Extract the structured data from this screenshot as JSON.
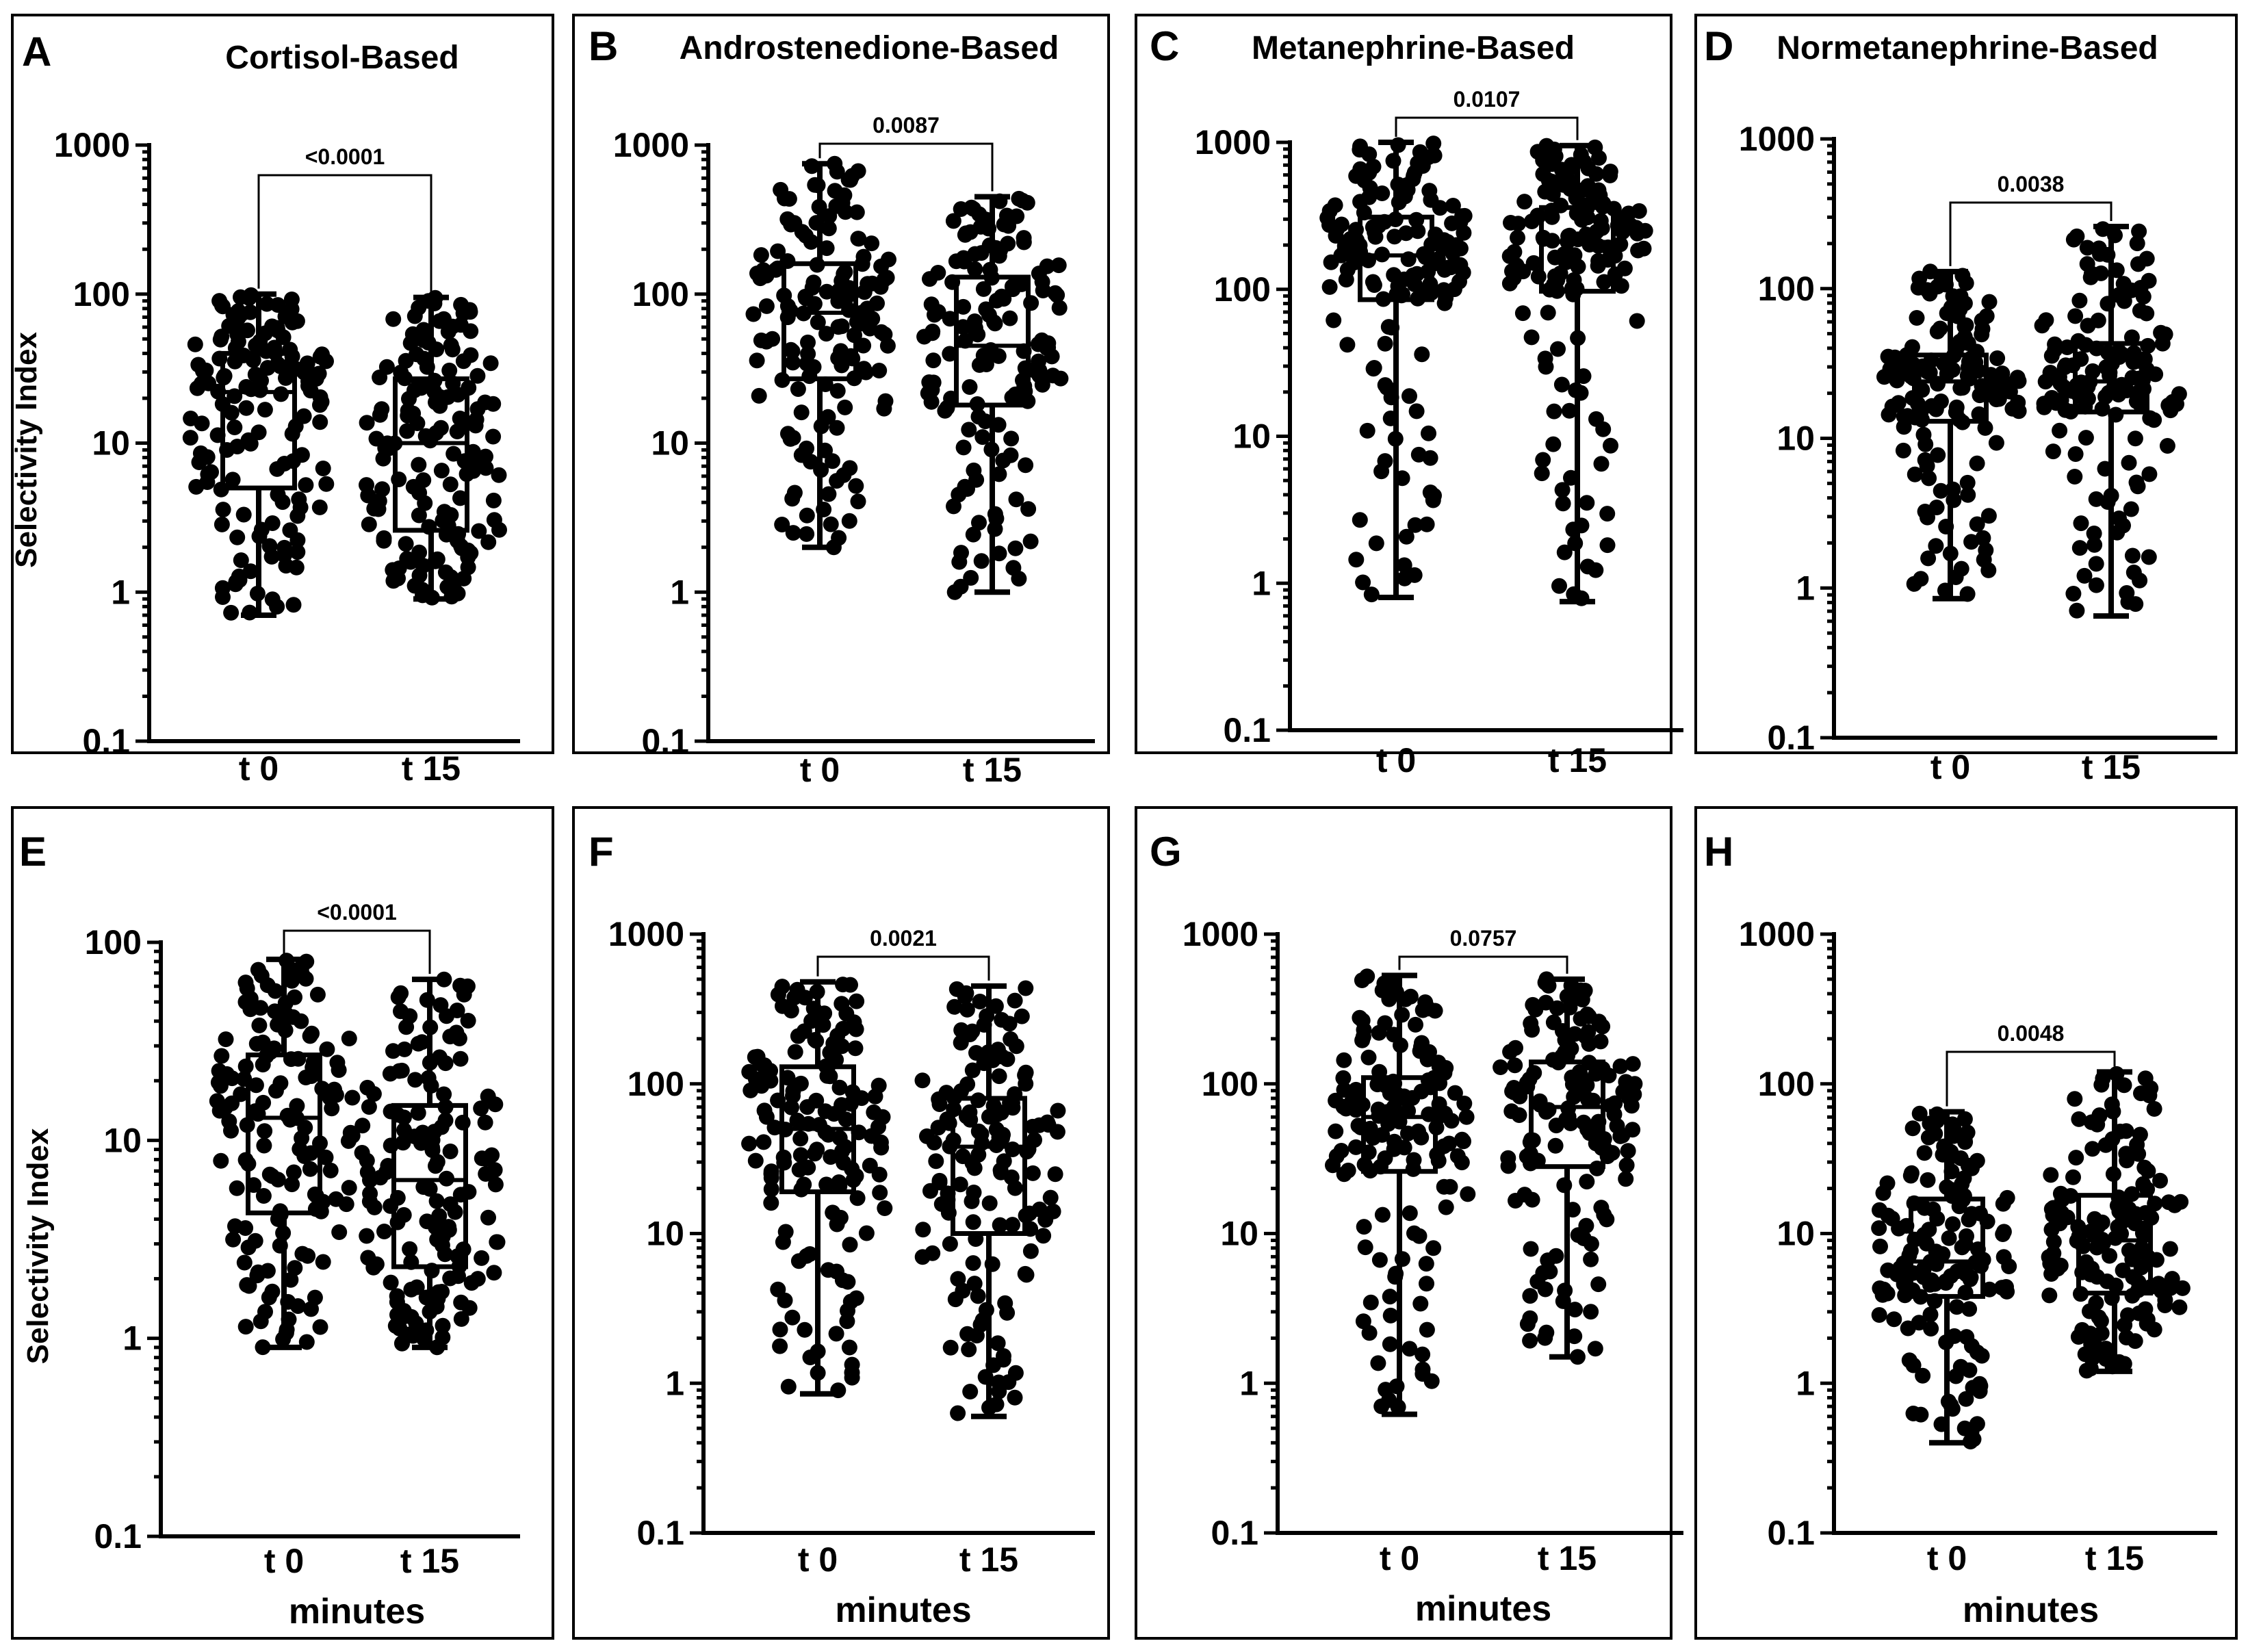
{
  "chart_data": [
    {
      "id": "A",
      "letter": "A",
      "title": "Cortisol-Based",
      "type": "box",
      "ylabel": "Selectivity Index",
      "xlabel": "",
      "yscale": "log",
      "ylim": [
        0.1,
        1000
      ],
      "yticks": [
        "0.1",
        "1",
        "10",
        "100",
        "1000"
      ],
      "categories": [
        "t 0",
        "t 15"
      ],
      "p_value": "<0.0001",
      "boxes": [
        {
          "category": "t 0",
          "min": 0.7,
          "q1": 5,
          "median": 22,
          "q3": 40,
          "max": 100,
          "n": 150,
          "spread": 0.46
        },
        {
          "category": "t 15",
          "min": 0.9,
          "q1": 2.6,
          "median": 10,
          "q3": 27,
          "max": 95,
          "n": 150,
          "spread": 0.46
        }
      ]
    },
    {
      "id": "B",
      "letter": "B",
      "title": "Androstenedione-Based",
      "type": "box",
      "ylabel": "",
      "xlabel": "",
      "yscale": "log",
      "ylim": [
        0.1,
        1000
      ],
      "yticks": [
        "0.1",
        "1",
        "10",
        "100",
        "1000"
      ],
      "categories": [
        "t 0",
        "t 15"
      ],
      "p_value": "0.0087",
      "boxes": [
        {
          "category": "t 0",
          "min": 2,
          "q1": 27,
          "median": 75,
          "q3": 160,
          "max": 750,
          "n": 150,
          "spread": 0.46
        },
        {
          "category": "t 15",
          "min": 1,
          "q1": 18,
          "median": 45,
          "q3": 130,
          "max": 450,
          "n": 150,
          "spread": 0.46
        }
      ]
    },
    {
      "id": "C",
      "letter": "C",
      "title": "Metanephrine-Based",
      "type": "box",
      "ylabel": "",
      "xlabel": "",
      "yscale": "log",
      "ylim": [
        0.1,
        1000
      ],
      "yticks": [
        "0.1",
        "1",
        "10",
        "100",
        "1000"
      ],
      "categories": [
        "t 0",
        "t 15"
      ],
      "p_value": "0.0107",
      "boxes": [
        {
          "category": "t 0",
          "min": 0.8,
          "q1": 85,
          "median": 170,
          "q3": 310,
          "max": 1000,
          "n": 150,
          "spread": 0.46
        },
        {
          "category": "t 15",
          "min": 0.75,
          "q1": 97,
          "median": 210,
          "q3": 360,
          "max": 950,
          "n": 150,
          "spread": 0.46
        }
      ]
    },
    {
      "id": "D",
      "letter": "D",
      "title": "Normetanephrine-Based",
      "type": "box",
      "ylabel": "",
      "xlabel": "",
      "yscale": "log",
      "ylim": [
        0.1,
        1000
      ],
      "yticks": [
        "0.1",
        "1",
        "10",
        "100",
        "1000"
      ],
      "categories": [
        "t 0",
        "t 15"
      ],
      "p_value": "0.0038",
      "boxes": [
        {
          "category": "t 0",
          "min": 0.85,
          "q1": 13,
          "median": 24,
          "q3": 36,
          "max": 130,
          "n": 150,
          "spread": 0.46
        },
        {
          "category": "t 15",
          "min": 0.65,
          "q1": 15,
          "median": 24,
          "q3": 43,
          "max": 260,
          "n": 150,
          "spread": 0.46
        }
      ]
    },
    {
      "id": "E",
      "letter": "E",
      "title": "",
      "type": "box",
      "ylabel": "Selectivity Index",
      "xlabel": "minutes",
      "yscale": "log",
      "ylim": [
        0.1,
        100
      ],
      "yticks": [
        "0.1",
        "1",
        "10",
        "100"
      ],
      "categories": [
        "t  0",
        "t 15"
      ],
      "p_value": "<0.0001",
      "boxes": [
        {
          "category": "t  0",
          "min": 0.9,
          "q1": 4.3,
          "median": 13,
          "q3": 27,
          "max": 82,
          "n": 150,
          "spread": 0.46
        },
        {
          "category": "t 15",
          "min": 0.9,
          "q1": 2.3,
          "median": 6.3,
          "q3": 15,
          "max": 65,
          "n": 150,
          "spread": 0.46
        }
      ]
    },
    {
      "id": "F",
      "letter": "F",
      "title": "",
      "type": "box",
      "ylabel": "",
      "xlabel": "minutes",
      "yscale": "log",
      "ylim": [
        0.1,
        1000
      ],
      "yticks": [
        "0.1",
        "1",
        "10",
        "100",
        "1000"
      ],
      "categories": [
        "t 0",
        "t 15"
      ],
      "p_value": "0.0021",
      "boxes": [
        {
          "category": "t 0",
          "min": 0.85,
          "q1": 19,
          "median": 50,
          "q3": 130,
          "max": 480,
          "n": 150,
          "spread": 0.46
        },
        {
          "category": "t 15",
          "min": 0.6,
          "q1": 10,
          "median": 38,
          "q3": 80,
          "max": 450,
          "n": 150,
          "spread": 0.46
        }
      ]
    },
    {
      "id": "G",
      "letter": "G",
      "title": "",
      "type": "box",
      "ylabel": "",
      "xlabel": "minutes",
      "yscale": "log",
      "ylim": [
        0.1,
        1000
      ],
      "yticks": [
        "0.1",
        "1",
        "10",
        "100",
        "1000"
      ],
      "categories": [
        "t 0",
        "t 15"
      ],
      "p_value": "0.0757",
      "boxes": [
        {
          "category": "t 0",
          "min": 0.62,
          "q1": 26,
          "median": 60,
          "q3": 110,
          "max": 530,
          "n": 150,
          "spread": 0.46
        },
        {
          "category": "t 15",
          "min": 1.5,
          "q1": 28,
          "median": 70,
          "q3": 140,
          "max": 500,
          "n": 150,
          "spread": 0.46
        }
      ]
    },
    {
      "id": "H",
      "letter": "H",
      "title": "",
      "type": "box",
      "ylabel": "",
      "xlabel": "minutes",
      "yscale": "log",
      "ylim": [
        0.1,
        1000
      ],
      "yticks": [
        "0.1",
        "1",
        "10",
        "100",
        "1000"
      ],
      "categories": [
        "t 0",
        "t 15"
      ],
      "p_value": "0.0048",
      "boxes": [
        {
          "category": "t 0",
          "min": 0.4,
          "q1": 3.8,
          "median": 6.5,
          "q3": 17,
          "max": 65,
          "n": 150,
          "spread": 0.46
        },
        {
          "category": "t 15",
          "min": 1.2,
          "q1": 4,
          "median": 9,
          "q3": 18,
          "max": 120,
          "n": 150,
          "spread": 0.46
        }
      ]
    }
  ]
}
